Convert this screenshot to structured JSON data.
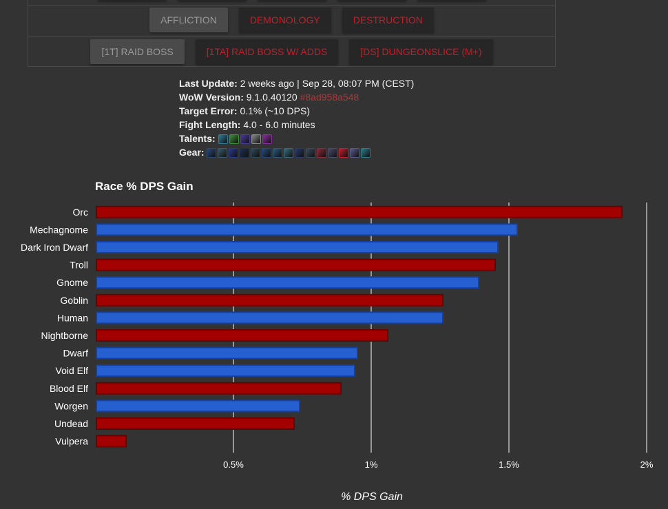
{
  "nav": {
    "specs": [
      {
        "label": "AFFLICTION",
        "active": true
      },
      {
        "label": "DEMONOLOGY",
        "active": false
      },
      {
        "label": "DESTRUCTION",
        "active": false
      }
    ],
    "fights": [
      {
        "label": "[1T] RAID BOSS",
        "active": true
      },
      {
        "label": "[1TA] RAID BOSS W/ ADDS",
        "active": false
      },
      {
        "label": "[DS] DUNGEONSLICE (M+)",
        "active": false
      }
    ]
  },
  "meta": {
    "last_update_label": "Last Update:",
    "last_update_value": "2 weeks ago | Sep 28, 08:07 PM (CEST)",
    "wow_version_label": "WoW Version:",
    "wow_version_value": "9.1.0.40120",
    "wow_version_hash": "#8ad958a548",
    "target_error_label": "Target Error:",
    "target_error_value": "0.1% (~10 DPS)",
    "fight_length_label": "Fight Length:",
    "fight_length_value": "4.0 - 6.0 minutes",
    "talents_label": "Talents:",
    "talent_icons": [
      "#2f7d9a",
      "#3f8f3a",
      "#4b3aa0",
      "#8a8a8a",
      "#8a2fa0"
    ],
    "gear_label": "Gear:",
    "gear_icons": [
      "#2a4a7a",
      "#3a5a6a",
      "#2a3a8a",
      "#1e3050",
      "#2f4a5a",
      "#254a7a",
      "#2a5a7a",
      "#3a6a7a",
      "#2a3a6a",
      "#3a4a5a",
      "#8a2a3a",
      "#4a4a6a",
      "#c02030",
      "#5a5a8a",
      "#2a7a8a"
    ]
  },
  "chart_data": {
    "type": "bar",
    "orientation": "horizontal",
    "title": "Race % DPS Gain",
    "xlabel": "% DPS Gain",
    "ylabel": "",
    "xlim": [
      0,
      2
    ],
    "xticks": [
      0.5,
      1,
      1.5,
      2
    ],
    "xtick_labels": [
      "0.5%",
      "1%",
      "1.5%",
      "2%"
    ],
    "grid": true,
    "categories": [
      "Orc",
      "Mechagnome",
      "Dark Iron Dwarf",
      "Troll",
      "Gnome",
      "Goblin",
      "Human",
      "Nightborne",
      "Dwarf",
      "Void Elf",
      "Blood Elf",
      "Worgen",
      "Undead",
      "Vulpera"
    ],
    "values": [
      1.91,
      1.53,
      1.46,
      1.45,
      1.39,
      1.26,
      1.26,
      1.06,
      0.95,
      0.94,
      0.89,
      0.74,
      0.72,
      0.11
    ],
    "factions": [
      "horde",
      "alliance",
      "alliance",
      "horde",
      "alliance",
      "horde",
      "alliance",
      "horde",
      "alliance",
      "alliance",
      "horde",
      "alliance",
      "horde",
      "horde"
    ],
    "colors": {
      "horde": {
        "fill": "#a30000",
        "stroke": "#6e0000"
      },
      "alliance": {
        "fill": "#2660d0",
        "stroke": "#1440a0"
      }
    }
  }
}
